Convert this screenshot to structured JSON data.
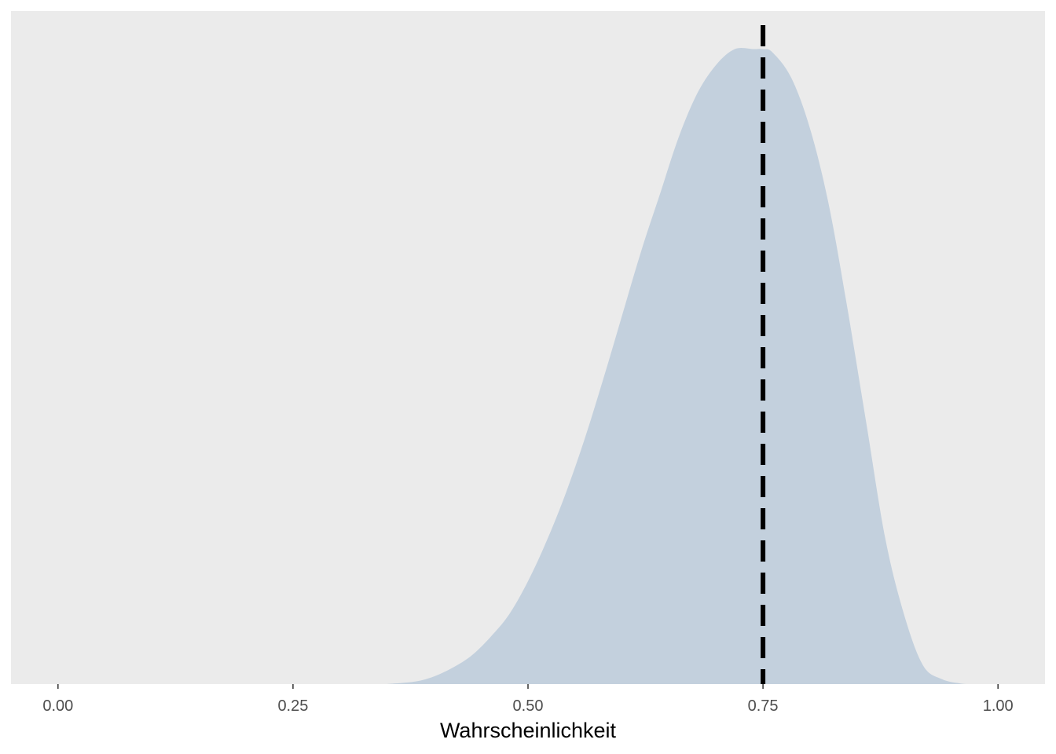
{
  "chart_data": {
    "type": "area",
    "title": "",
    "xlabel": "Wahrscheinlichkeit",
    "ylabel": "",
    "xlim": [
      -0.05,
      1.05
    ],
    "ylim": [
      0,
      1.06
    ],
    "x_ticks": [
      0,
      0.25,
      0.5,
      0.75,
      1
    ],
    "x_tick_labels": [
      "0.00",
      "0.25",
      "0.50",
      "0.75",
      "1.00"
    ],
    "grid": false,
    "density": {
      "x": [
        0.35,
        0.38,
        0.4,
        0.42,
        0.44,
        0.46,
        0.48,
        0.5,
        0.52,
        0.54,
        0.56,
        0.58,
        0.6,
        0.62,
        0.64,
        0.66,
        0.68,
        0.7,
        0.72,
        0.74,
        0.75,
        0.76,
        0.78,
        0.8,
        0.82,
        0.84,
        0.86,
        0.88,
        0.9,
        0.92,
        0.94,
        0.96,
        0.97
      ],
      "y": [
        0.0,
        0.004,
        0.012,
        0.026,
        0.045,
        0.074,
        0.11,
        0.162,
        0.226,
        0.3,
        0.385,
        0.48,
        0.58,
        0.68,
        0.77,
        0.86,
        0.93,
        0.975,
        1.0,
        1.0,
        1.0,
        0.995,
        0.955,
        0.875,
        0.755,
        0.59,
        0.41,
        0.23,
        0.11,
        0.03,
        0.008,
        0.001,
        0.0
      ]
    },
    "reference_line": {
      "x": 0.75,
      "style": "dashed",
      "color": "#000000"
    },
    "colors": {
      "panel": "#ebebeb",
      "fill": "#c3d0dd",
      "tick_text": "#4d4d4d"
    }
  }
}
